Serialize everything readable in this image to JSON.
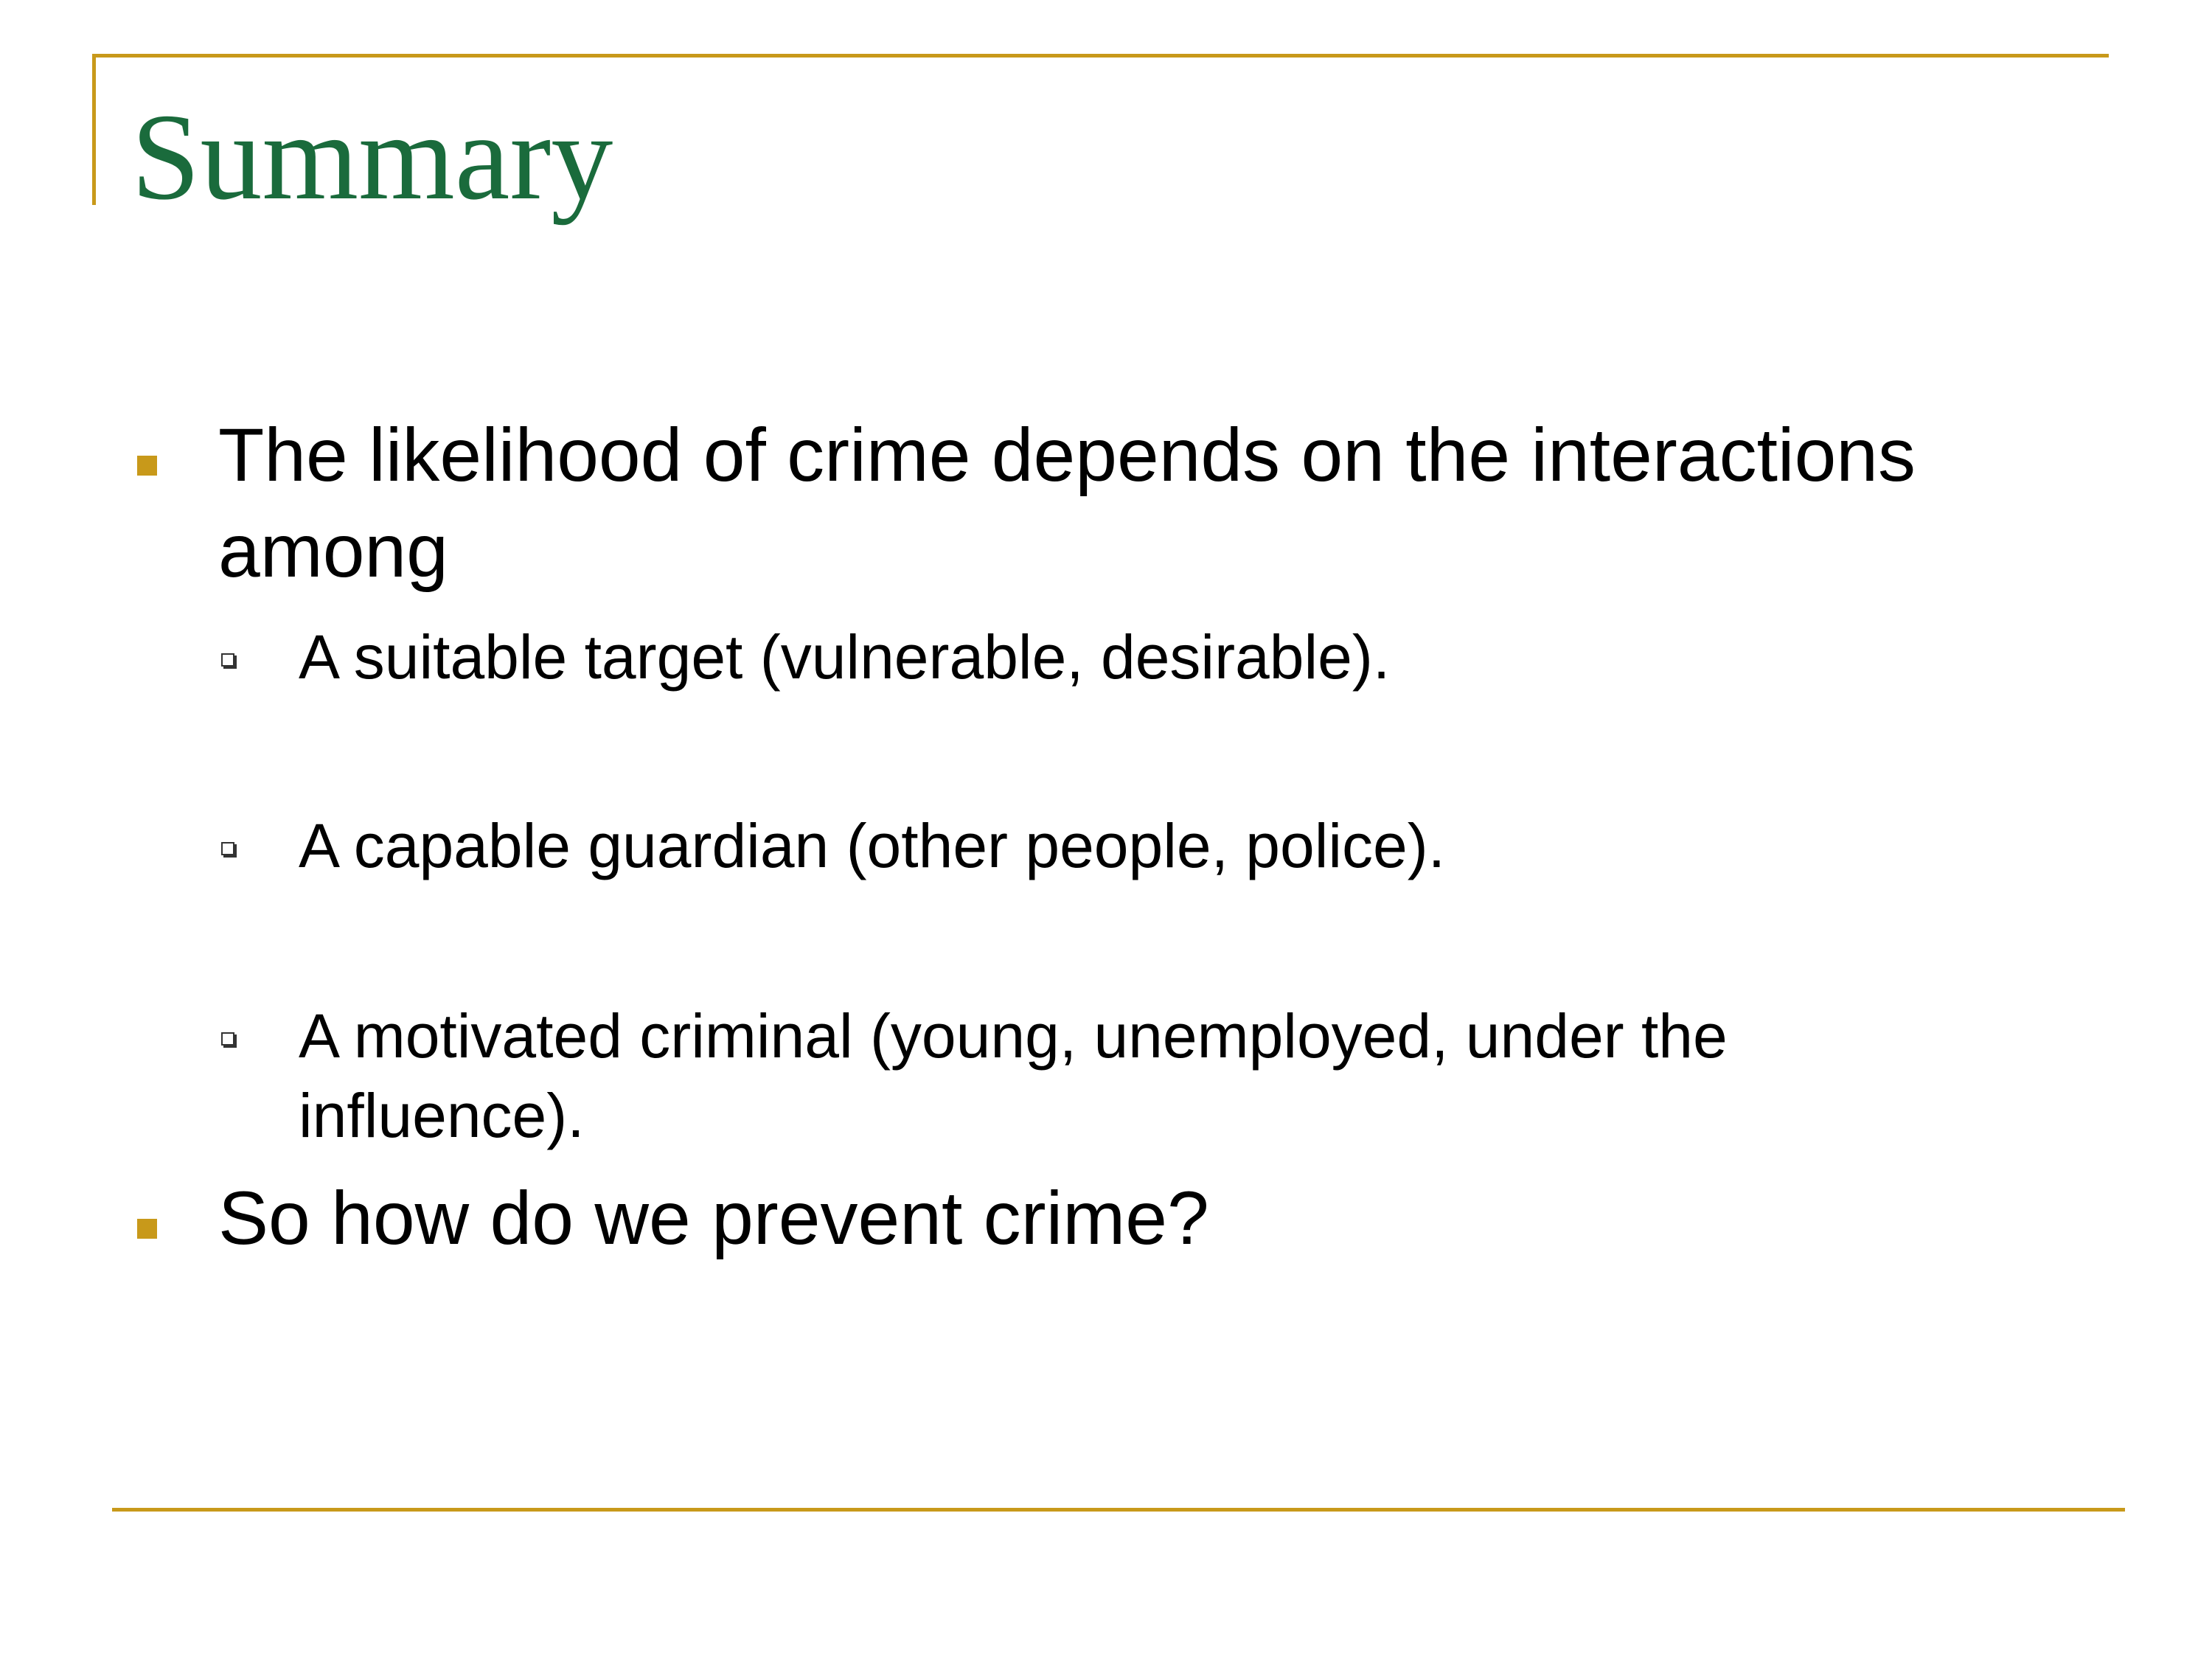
{
  "slide": {
    "title": "Summary",
    "bullet1": {
      "line1": "The likelihood of crime depends on the interactions",
      "line2": "among"
    },
    "sub_bullets": [
      {
        "line1": "A suitable target (vulnerable, desirable).",
        "line2": ""
      },
      {
        "line1": "A capable guardian (other people, police).",
        "line2": ""
      },
      {
        "line1": "A motivated criminal (young, unemployed, under the",
        "line2": "influence)."
      }
    ],
    "bullet2": {
      "line1": "So how do we prevent crime?"
    }
  },
  "colors": {
    "title": "#1a6b3c",
    "accent_rule": "#c8991a",
    "bullet_square": "#c8991a",
    "text": "#000000"
  }
}
